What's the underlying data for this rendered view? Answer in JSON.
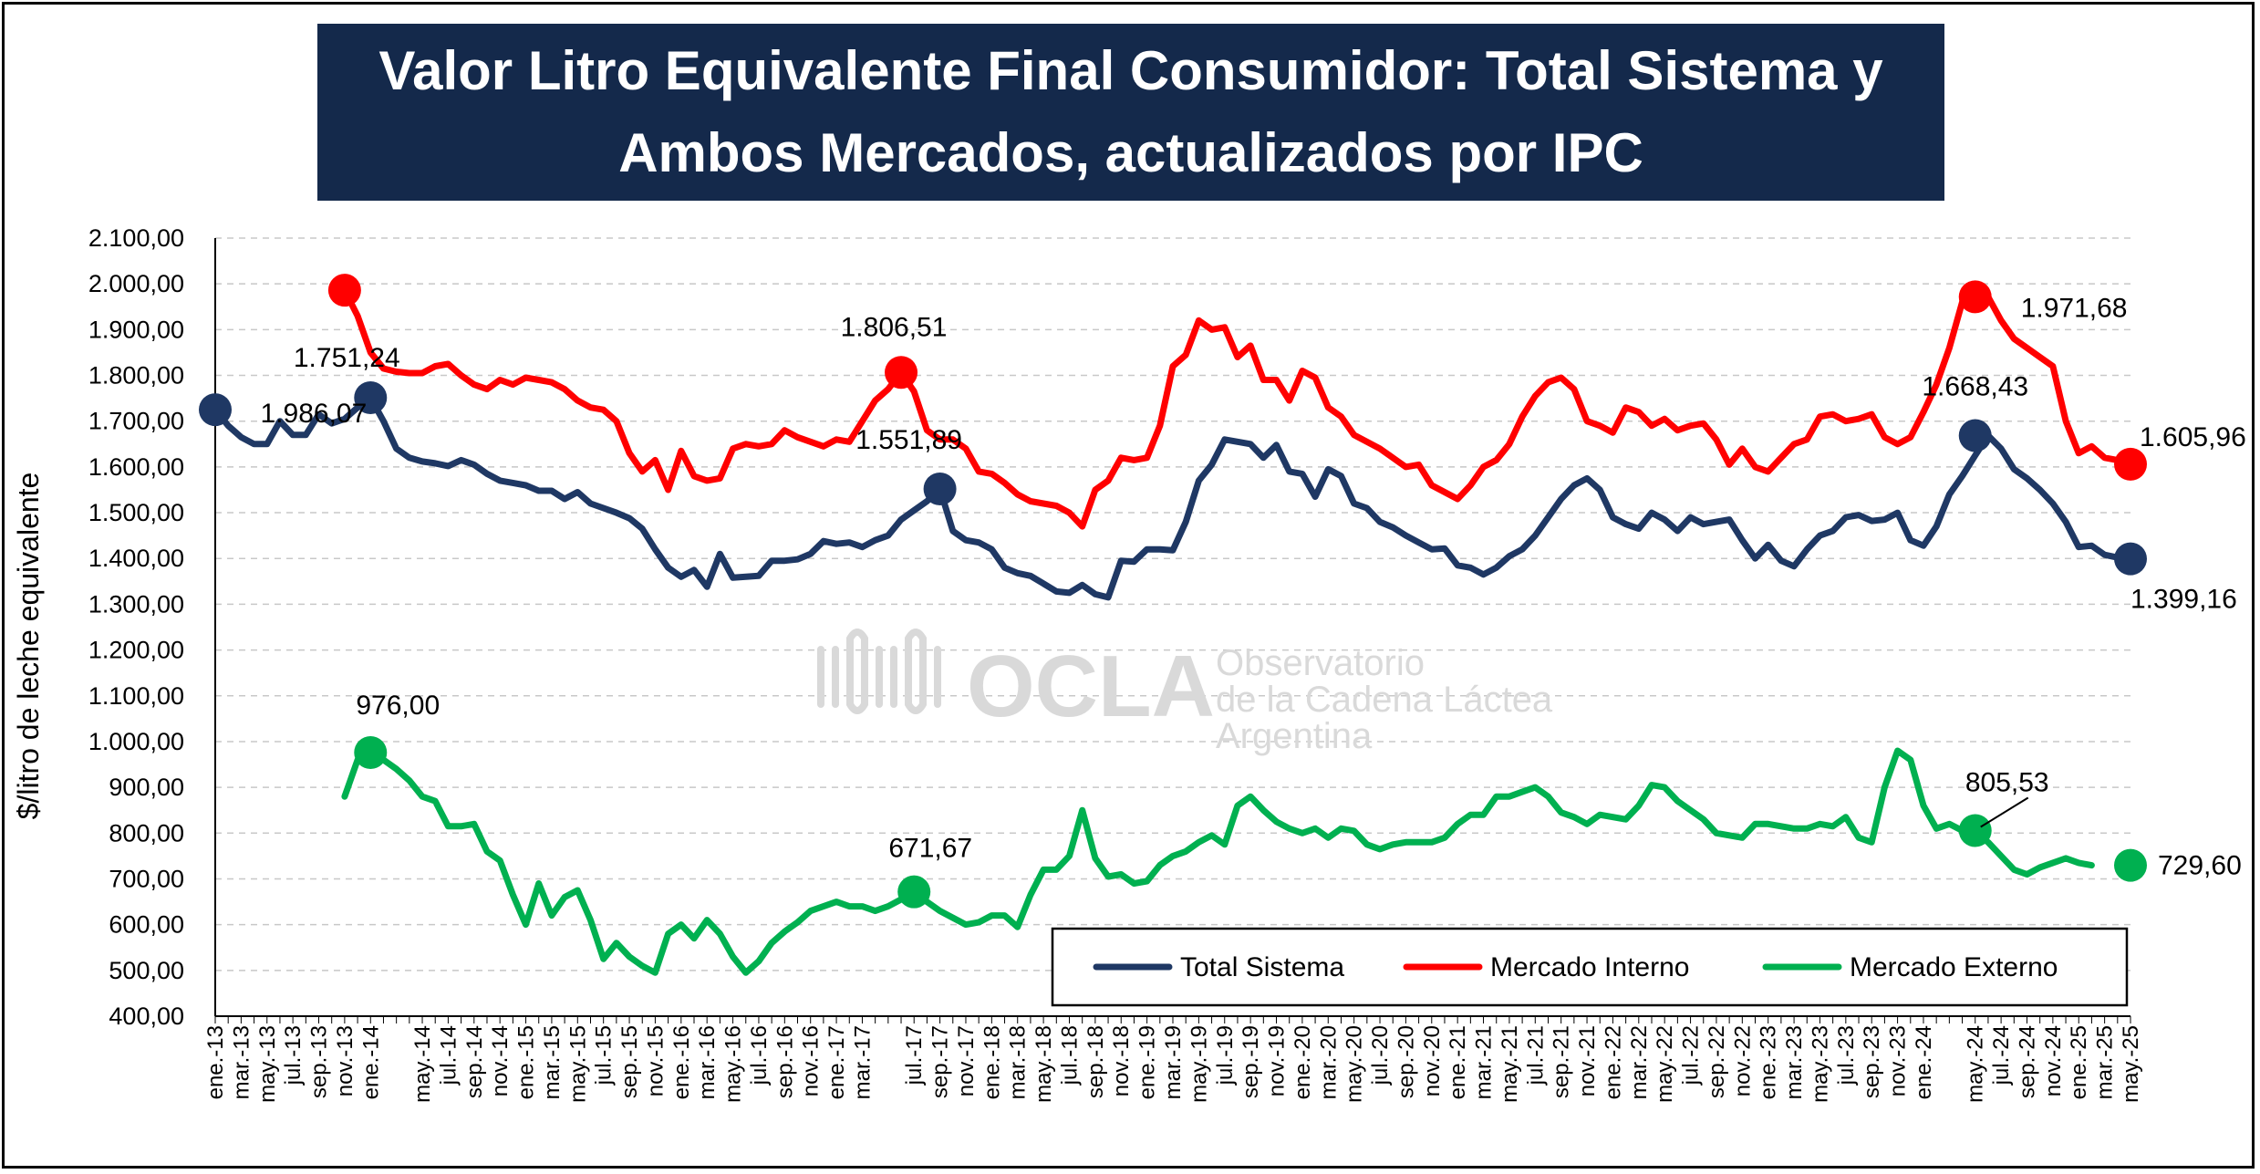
{
  "chart_data": {
    "type": "line",
    "title": "Valor Litro Equivalente Final Consumidor: Total Sistema y Ambos Mercados, actualizados por IPC",
    "ylabel": "$/litro de leche equivalente",
    "ylim": [
      400,
      2100
    ],
    "ytick_labels": [
      "400,00",
      "500,00",
      "600,00",
      "700,00",
      "800,00",
      "900,00",
      "1.000,00",
      "1.100,00",
      "1.200,00",
      "1.300,00",
      "1.400,00",
      "1.500,00",
      "1.600,00",
      "1.700,00",
      "1.800,00",
      "1.900,00",
      "2.000,00",
      "2.100,00"
    ],
    "x_tick_labels": [
      "ene.-13",
      "mar.-13",
      "may.-13",
      "jul.-13",
      "sep.-13",
      "nov.-13",
      "ene.-14",
      "may.-14",
      "jul.-14",
      "sep.-14",
      "nov.-14",
      "ene.-15",
      "mar.-15",
      "may.-15",
      "jul.-15",
      "sep.-15",
      "nov.-15",
      "ene.-16",
      "mar.-16",
      "may.-16",
      "jul.-16",
      "sep.-16",
      "nov.-16",
      "ene.-17",
      "mar.-17",
      "jul.-17",
      "sep.-17",
      "nov.-17",
      "ene.-18",
      "mar.-18",
      "may.-18",
      "jul.-18",
      "sep.-18",
      "nov.-18",
      "ene.-19",
      "mar.-19",
      "may.-19",
      "jul.-19",
      "sep.-19",
      "nov.-19",
      "ene.-20",
      "mar.-20",
      "may.-20",
      "jul.-20",
      "sep.-20",
      "nov.-20",
      "ene.-21",
      "mar.-21",
      "may.-21",
      "jul.-21",
      "sep.-21",
      "nov.-21",
      "ene.-22",
      "mar.-22",
      "may.-22",
      "jul.-22",
      "sep.-22",
      "nov.-22",
      "ene.-23",
      "mar.-23",
      "may.-23",
      "jul.-23",
      "sep.-23",
      "nov.-23",
      "ene.-24",
      "may.-24",
      "jul.-24",
      "sep.-24",
      "nov.-24",
      "ene.-25",
      "mar.-25",
      "may.-25"
    ],
    "x_tick_months": [
      0,
      2,
      4,
      6,
      8,
      10,
      12,
      16,
      18,
      20,
      22,
      24,
      26,
      28,
      30,
      32,
      34,
      36,
      38,
      40,
      42,
      44,
      46,
      48,
      50,
      54,
      56,
      58,
      60,
      62,
      64,
      66,
      68,
      70,
      72,
      74,
      76,
      78,
      80,
      82,
      84,
      86,
      88,
      90,
      92,
      94,
      96,
      98,
      100,
      102,
      104,
      106,
      108,
      110,
      112,
      114,
      116,
      118,
      120,
      122,
      124,
      126,
      128,
      130,
      132,
      136,
      138,
      140,
      142,
      144,
      146,
      148
    ],
    "x_start": "ene.-13",
    "series": [
      {
        "name": "Total Sistema",
        "color": "#1f3864",
        "start_month": 0,
        "values": [
          1725,
          1690,
          1665,
          1650,
          1650,
          1700,
          1670,
          1670,
          1715,
          1695,
          1705,
          1730,
          1751.24,
          1700,
          1640,
          1620,
          1612,
          1608,
          1602,
          1615,
          1605,
          1585,
          1570,
          1565,
          1560,
          1548,
          1548,
          1530,
          1545,
          1520,
          1510,
          1500,
          1488,
          1465,
          1420,
          1380,
          1360,
          1375,
          1338,
          1410,
          1358,
          1360,
          1362,
          1395,
          1395,
          1398,
          1410,
          1438,
          1432,
          1435,
          1425,
          1440,
          1450,
          1485,
          1505,
          1525,
          1551.89,
          1460,
          1440,
          1435,
          1420,
          1380,
          1368,
          1362,
          1345,
          1328,
          1325,
          1342,
          1322,
          1315,
          1395,
          1393,
          1420,
          1420,
          1418,
          1480,
          1570,
          1605,
          1660,
          1655,
          1650,
          1620,
          1648,
          1590,
          1585,
          1535,
          1595,
          1580,
          1520,
          1510,
          1480,
          1468,
          1450,
          1435,
          1420,
          1422,
          1385,
          1380,
          1365,
          1380,
          1405,
          1420,
          1450,
          1490,
          1530,
          1560,
          1575,
          1550,
          1490,
          1475,
          1465,
          1500,
          1485,
          1460,
          1490,
          1475,
          1480,
          1485,
          1440,
          1400,
          1430,
          1395,
          1383,
          1420,
          1450,
          1460,
          1490,
          1495,
          1482,
          1485,
          1500,
          1440,
          1428,
          1470,
          1540,
          1580,
          1625,
          1668.43,
          1640,
          1595,
          1575,
          1550,
          1520,
          1480,
          1425,
          1428,
          1408,
          1402,
          1399.16
        ]
      },
      {
        "name": "Mercado Interno",
        "color": "#ff0000",
        "start_month": 10,
        "values": [
          1986.07,
          1930,
          1850,
          1815,
          1808,
          1805,
          1805,
          1820,
          1825,
          1800,
          1780,
          1770,
          1790,
          1780,
          1795,
          1790,
          1785,
          1770,
          1745,
          1730,
          1725,
          1700,
          1630,
          1590,
          1615,
          1550,
          1635,
          1580,
          1570,
          1575,
          1640,
          1650,
          1645,
          1650,
          1680,
          1665,
          1655,
          1645,
          1660,
          1655,
          1700,
          1745,
          1770,
          1806.51,
          1765,
          1680,
          1660,
          1660,
          1640,
          1590,
          1585,
          1565,
          1540,
          1525,
          1520,
          1515,
          1500,
          1470,
          1550,
          1570,
          1620,
          1615,
          1620,
          1690,
          1820,
          1845,
          1920,
          1900,
          1905,
          1840,
          1865,
          1790,
          1790,
          1745,
          1810,
          1795,
          1730,
          1710,
          1670,
          1655,
          1640,
          1620,
          1600,
          1605,
          1560,
          1545,
          1530,
          1560,
          1600,
          1615,
          1650,
          1710,
          1755,
          1785,
          1795,
          1770,
          1700,
          1690,
          1675,
          1730,
          1720,
          1690,
          1705,
          1680,
          1690,
          1695,
          1660,
          1605,
          1640,
          1600,
          1590,
          1620,
          1650,
          1660,
          1710,
          1715,
          1700,
          1705,
          1715,
          1665,
          1650,
          1665,
          1720,
          1780,
          1860,
          1960,
          1965,
          1971.68,
          1920,
          1880,
          1860,
          1840,
          1820,
          1700,
          1630,
          1645,
          1620,
          1615,
          1605.96
        ]
      },
      {
        "name": "Mercado Externo",
        "color": "#00b050",
        "start_month": 10,
        "values": [
          880,
          960,
          976.0,
          960,
          940,
          915,
          880,
          870,
          815,
          815,
          820,
          760,
          740,
          665,
          600,
          690,
          620,
          660,
          675,
          610,
          525,
          560,
          530,
          510,
          495,
          580,
          600,
          570,
          610,
          580,
          530,
          495,
          520,
          560,
          585,
          605,
          630,
          640,
          650,
          640,
          640,
          630,
          640,
          655,
          671.67,
          650,
          630,
          615,
          600,
          605,
          620,
          620,
          595,
          665,
          720,
          720,
          750,
          850,
          745,
          705,
          710,
          690,
          695,
          730,
          750,
          760,
          780,
          795,
          775,
          860,
          880,
          850,
          825,
          810,
          800,
          810,
          790,
          810,
          805,
          775,
          765,
          775,
          780,
          780,
          780,
          790,
          820,
          840,
          840,
          880,
          880,
          890,
          900,
          880,
          845,
          835,
          820,
          840,
          835,
          830,
          860,
          905,
          900,
          870,
          850,
          830,
          800,
          795,
          790,
          820,
          820,
          815,
          810,
          810,
          820,
          815,
          835,
          790,
          780,
          900,
          980,
          960,
          860,
          810,
          820,
          805.53,
          800,
          780,
          750,
          720,
          710,
          725,
          735,
          745,
          735,
          729.6
        ]
      }
    ],
    "annotations": [
      {
        "series": 1,
        "month": 10,
        "value": 1986.07,
        "label": "1.986,07"
      },
      {
        "series": 0,
        "month": 12,
        "value": 1751.24,
        "label": "1.751,24"
      },
      {
        "series": 1,
        "month": 53,
        "value": 1806.51,
        "label": "1.806,51"
      },
      {
        "series": 0,
        "month": 56,
        "value": 1551.89,
        "label": "1.551,89"
      },
      {
        "series": 1,
        "month": 136,
        "value": 1971.68,
        "label": "1.971,68"
      },
      {
        "series": 0,
        "month": 136,
        "value": 1668.43,
        "label": "1.668,43"
      },
      {
        "series": 1,
        "month": 148,
        "value": 1605.96,
        "label": "1.605,96"
      },
      {
        "series": 0,
        "month": 148,
        "value": 1399.16,
        "label": "1.399,16"
      },
      {
        "series": 2,
        "month": 12,
        "value": 976.0,
        "label": "976,00"
      },
      {
        "series": 2,
        "month": 54,
        "value": 671.67,
        "label": "671,67"
      },
      {
        "series": 2,
        "month": 136,
        "value": 805.53,
        "label": "805,53"
      },
      {
        "series": 2,
        "month": 148,
        "value": 729.6,
        "label": "729,60"
      }
    ],
    "marker_points": [
      {
        "series": 0,
        "month": 0,
        "value": 1725
      }
    ],
    "grid": true,
    "legend_position": "bottom-right"
  },
  "watermark": {
    "brand": "OCLA",
    "line1": "Observatorio",
    "line2": "de la Cadena Láctea",
    "line3": "Argentina"
  }
}
